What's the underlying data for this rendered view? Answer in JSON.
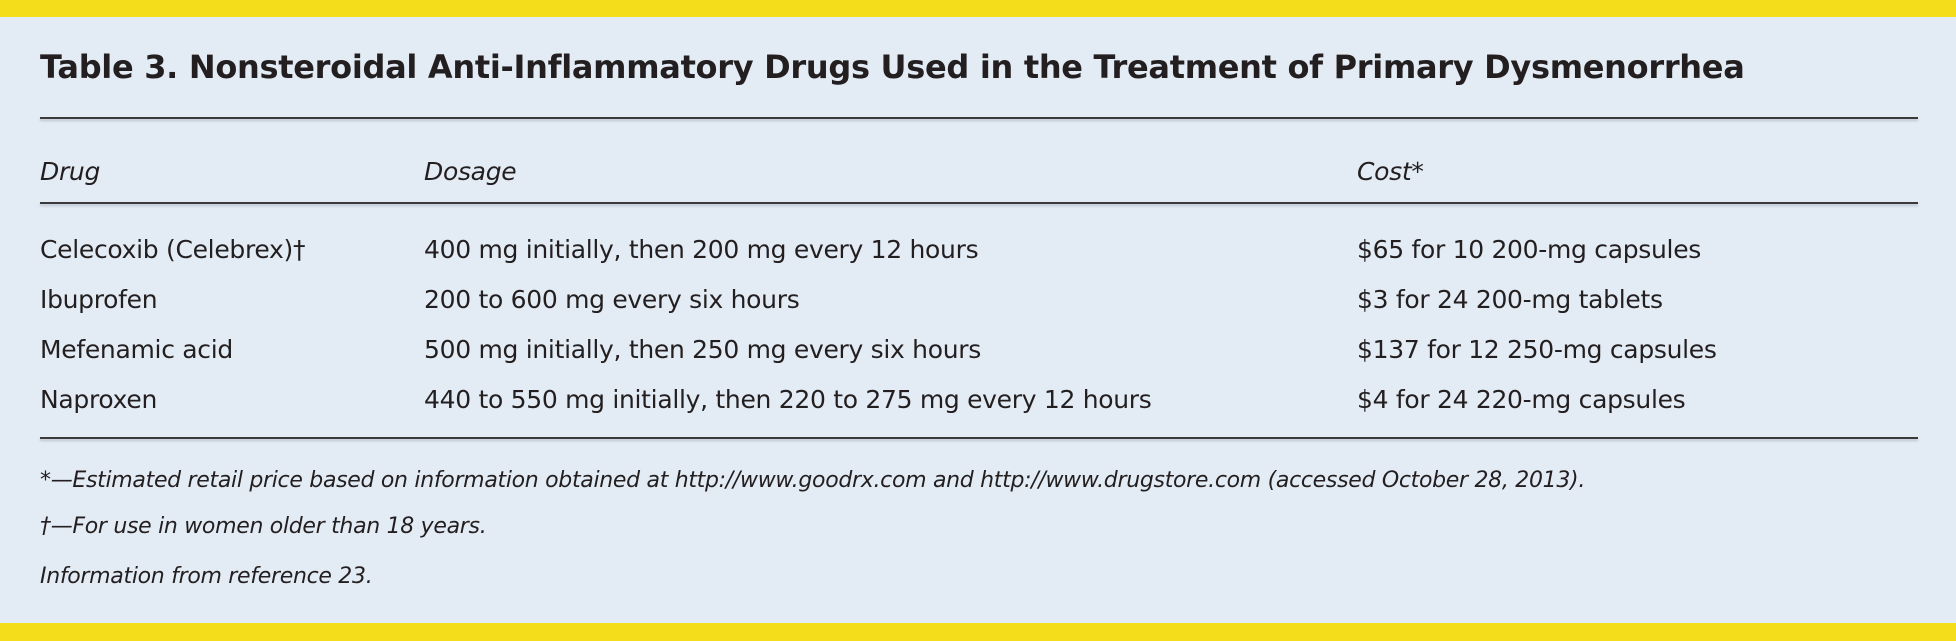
{
  "title": "Table 3. Nonsteroidal Anti-Inflammatory Drugs Used in the Treatment of Primary Dysmenorrhea",
  "columns": [
    "Drug",
    "Dosage",
    "Cost*"
  ],
  "rows": [
    [
      "Celecoxib (Celebrex)†",
      "400 mg initially, then 200 mg every 12 hours",
      "$65 for 10 200-mg capsules"
    ],
    [
      "Ibuprofen",
      "200 to 600 mg every six hours",
      "$3 for 24 200-mg tablets"
    ],
    [
      "Mefenamic acid",
      "500 mg initially, then 250 mg every six hours",
      "$137 for 12 250-mg capsules"
    ],
    [
      "Naproxen",
      "440 to 550 mg initially, then 220 to 275 mg every 12 hours",
      "$4 for 24 220-mg capsules"
    ]
  ],
  "footnotes": [
    "*—Estimated retail price based on information obtained at http://www.goodrx.com and http://www.drugstore.com (accessed October 28, 2013).",
    "†—For use in women older than 18 years.",
    "Information from reference 23."
  ],
  "colors": {
    "accent_bar": "#f4de1c",
    "background": "#e3ebf4"
  }
}
